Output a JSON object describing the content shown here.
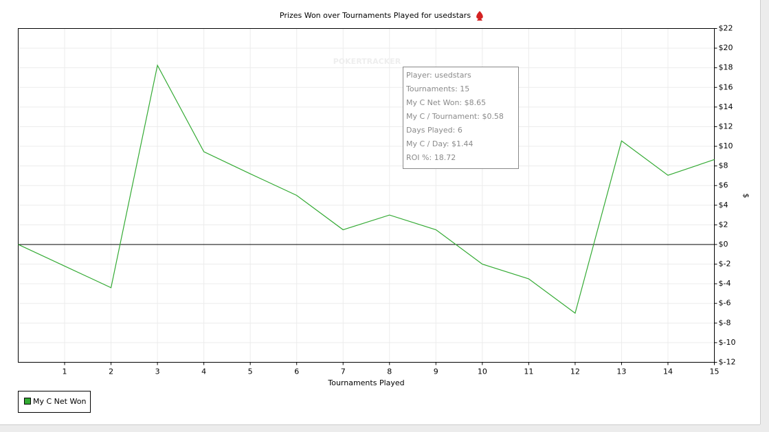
{
  "chart_data": {
    "type": "line",
    "title": "Prizes Won over Tournaments Played for usedstars",
    "watermark": "POKERTRACKER",
    "xlabel": "Tournaments Played",
    "ylabel": "$",
    "x": [
      0,
      1,
      2,
      3,
      4,
      5,
      6,
      7,
      8,
      9,
      10,
      11,
      12,
      13,
      14,
      15
    ],
    "series": [
      {
        "name": "My C Net Won",
        "color": "#33aa33",
        "values": [
          0,
          -2.2,
          -4.4,
          18.25,
          9.45,
          7.2,
          5,
          1.5,
          3,
          1.5,
          -2,
          -3.5,
          -7,
          10.55,
          7.05,
          8.65
        ]
      }
    ],
    "xlim": [
      0,
      15
    ],
    "xticks": [
      1,
      2,
      3,
      4,
      5,
      6,
      7,
      8,
      9,
      10,
      11,
      12,
      13,
      14,
      15
    ],
    "ylim": [
      -12,
      22
    ],
    "yticks": [
      {
        "value": -12,
        "label": "$-12"
      },
      {
        "value": -10,
        "label": "$-10"
      },
      {
        "value": -8,
        "label": "$-8"
      },
      {
        "value": -6,
        "label": "$-6"
      },
      {
        "value": -4,
        "label": "$-4"
      },
      {
        "value": -2,
        "label": "$-2"
      },
      {
        "value": 0,
        "label": "$0"
      },
      {
        "value": 2,
        "label": "$2"
      },
      {
        "value": 4,
        "label": "$4"
      },
      {
        "value": 6,
        "label": "$6"
      },
      {
        "value": 8,
        "label": "$8"
      },
      {
        "value": 10,
        "label": "$10"
      },
      {
        "value": 12,
        "label": "$12"
      },
      {
        "value": 14,
        "label": "$14"
      },
      {
        "value": 16,
        "label": "$16"
      },
      {
        "value": 18,
        "label": "$18"
      },
      {
        "value": 20,
        "label": "$20"
      },
      {
        "value": 22,
        "label": "$22"
      }
    ],
    "grid": true,
    "tooltip": [
      "Player: usedstars",
      "Tournaments: 15",
      "My C Net Won: $8.65",
      "My C / Tournament: $0.58",
      "Days Played: 6",
      "My C / Day: $1.44",
      "ROI %: 18.72"
    ]
  }
}
